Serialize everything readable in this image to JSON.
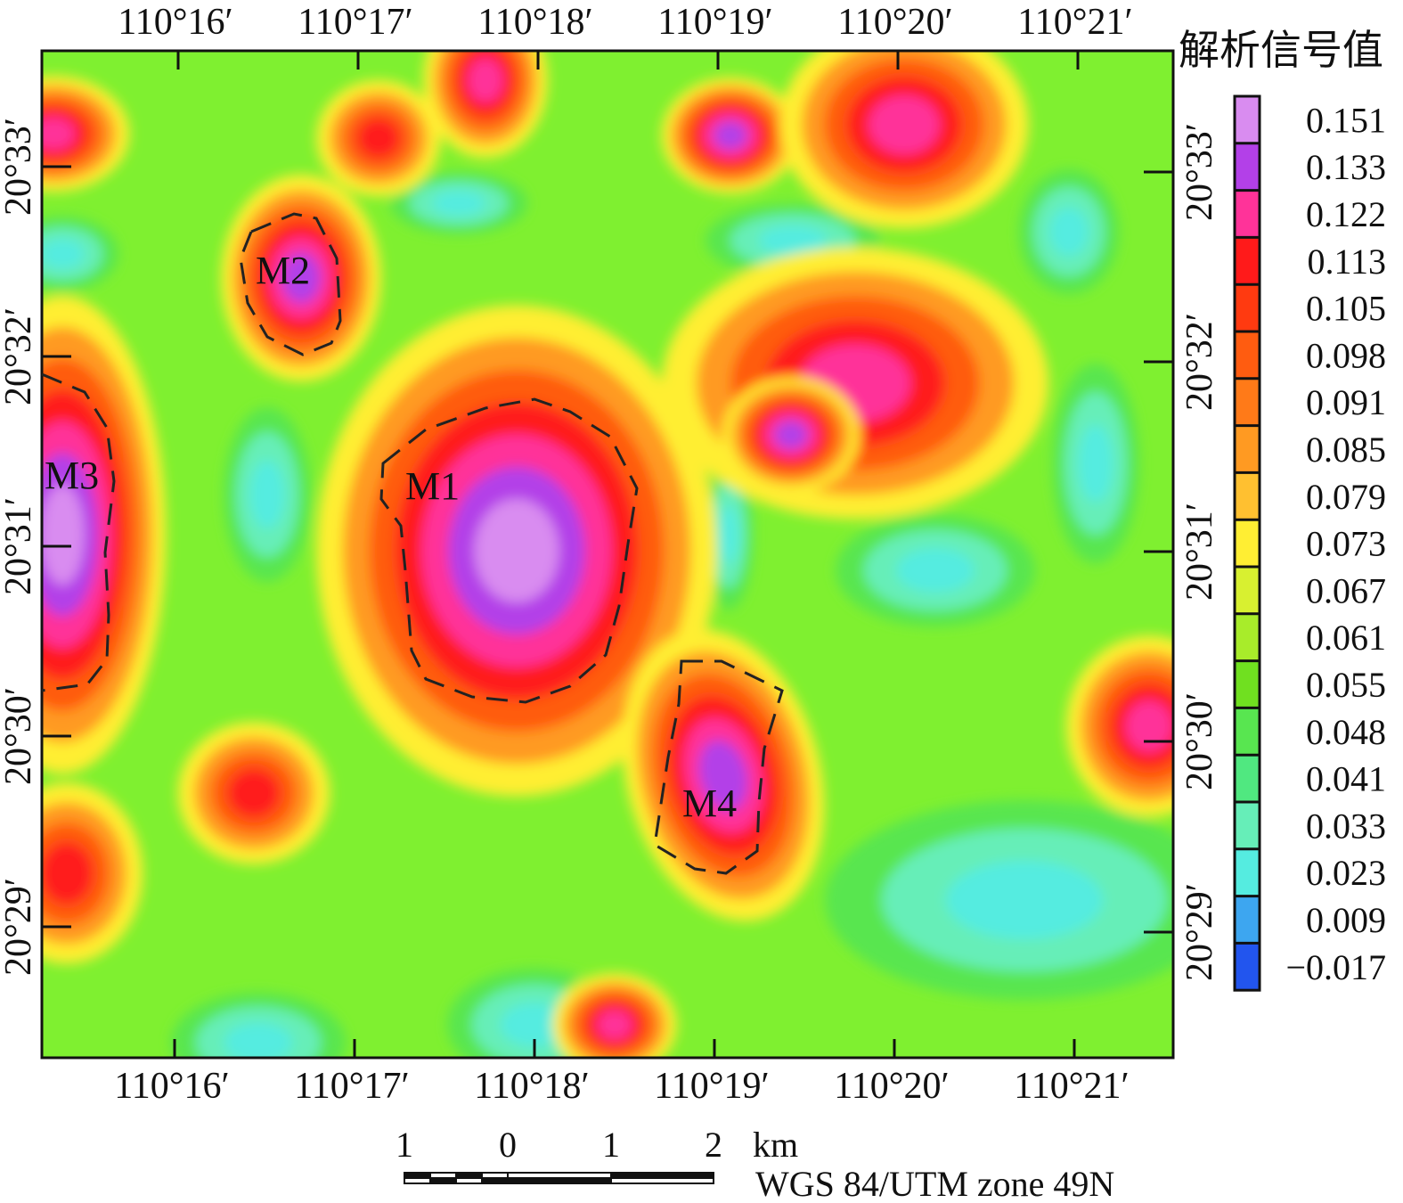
{
  "map": {
    "top_lon_labels": [
      "110°16′",
      "110°17′",
      "110°18′",
      "110°19′",
      "110°20′",
      "110°21′"
    ],
    "bottom_lon_labels": [
      "110°16′",
      "110°17′",
      "110°18′",
      "110°19′",
      "110°20′",
      "110°21′"
    ],
    "left_lat_labels": [
      "20°33′",
      "20°32′",
      "20°31′",
      "20°30′",
      "20°29′"
    ],
    "right_lat_labels": [
      "20°33′",
      "20°32′",
      "20°31′",
      "20°30′",
      "20°29′"
    ],
    "anomalies": [
      {
        "label": "M1",
        "level": 0.151
      },
      {
        "label": "M2",
        "level": 0.14
      },
      {
        "label": "M3",
        "level": 0.151
      },
      {
        "label": "M4",
        "level": 0.145
      }
    ],
    "smaller_highs": [
      {
        "level": 0.125
      },
      {
        "level": 0.12
      },
      {
        "level": 0.13
      },
      {
        "level": 0.12
      },
      {
        "level": 0.115
      },
      {
        "level": 0.125
      },
      {
        "level": 0.13
      },
      {
        "level": 0.125
      },
      {
        "level": 0.11
      },
      {
        "level": 0.11
      },
      {
        "level": 0.12
      }
    ]
  },
  "legend": {
    "title": "解析信号值",
    "values": [
      "0.151",
      "0.133",
      "0.122",
      "0.113",
      "0.105",
      "0.098",
      "0.091",
      "0.085",
      "0.079",
      "0.073",
      "0.067",
      "0.061",
      "0.055",
      "0.048",
      "0.041",
      "0.033",
      "0.023",
      "0.009",
      "−0.017"
    ],
    "colors": [
      "#d98cf0",
      "#b340e8",
      "#ff3399",
      "#ff1a1a",
      "#ff3a10",
      "#ff5c10",
      "#ff7a18",
      "#ff9a22",
      "#ffc030",
      "#ffee33",
      "#d8f030",
      "#a8ec2a",
      "#70e020",
      "#58e650",
      "#50e880",
      "#66eeb8",
      "#55ece0",
      "#3da6f0",
      "#2255ee"
    ],
    "background_color": "#7ff030"
  },
  "scale_bar": {
    "labels": [
      "1",
      "0",
      "1",
      "2"
    ],
    "unit": "km",
    "projection": "WGS 84/UTM zone 49N"
  }
}
